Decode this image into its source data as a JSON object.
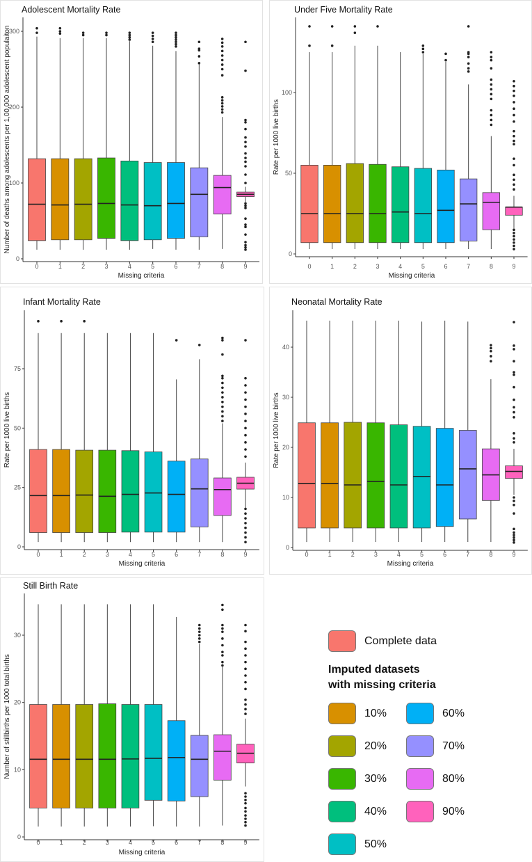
{
  "chart_data": [
    {
      "type": "boxplot",
      "title": "Adolescent Mortality Rate",
      "xlabel": "Missing criteria",
      "ylabel": "Number of deaths among adolescents per 1,00,000 adolescent populaiton",
      "categories": [
        "0",
        "1",
        "2",
        "3",
        "4",
        "5",
        "6",
        "7",
        "8",
        "9"
      ],
      "yticks": [
        0,
        100,
        200,
        300
      ],
      "ylim": [
        0,
        315
      ],
      "boxes": [
        {
          "low": 12,
          "q1": 24,
          "median": 72,
          "q3": 132,
          "high": 293,
          "outliers": [
            298,
            304
          ]
        },
        {
          "low": 12,
          "q1": 25,
          "median": 71,
          "q3": 132,
          "high": 291,
          "outliers": [
            297,
            300,
            304
          ]
        },
        {
          "low": 12,
          "q1": 25,
          "median": 72,
          "q3": 132,
          "high": 291,
          "outliers": [
            295,
            298
          ]
        },
        {
          "low": 12,
          "q1": 27,
          "median": 73,
          "q3": 133,
          "high": 291,
          "outliers": [
            295,
            298
          ]
        },
        {
          "low": 12,
          "q1": 24,
          "median": 71,
          "q3": 129,
          "high": 287,
          "outliers": [
            289,
            292,
            295,
            298
          ]
        },
        {
          "low": 13,
          "q1": 25,
          "median": 70,
          "q3": 127,
          "high": 281,
          "outliers": [
            286,
            290,
            294,
            298
          ]
        },
        {
          "low": 12,
          "q1": 27,
          "median": 73,
          "q3": 127,
          "high": 274,
          "outliers": [
            280,
            283,
            286,
            289,
            292,
            295,
            298
          ]
        },
        {
          "low": 12,
          "q1": 29,
          "median": 85,
          "q3": 120,
          "high": 258,
          "outliers": [
            258,
            267,
            275,
            277,
            286
          ]
        },
        {
          "low": 13,
          "q1": 59,
          "median": 94,
          "q3": 110,
          "high": 187,
          "outliers": [
            193,
            197,
            201,
            205,
            209,
            213,
            242,
            250,
            256,
            262,
            268,
            274,
            280,
            285,
            290
          ]
        },
        {
          "low": 75,
          "q1": 82,
          "median": 85,
          "q3": 88,
          "high": 95,
          "outliers": [
            12,
            15,
            18,
            22,
            32,
            42,
            45,
            53,
            67,
            70,
            73,
            100,
            111,
            122,
            128,
            133,
            139,
            148,
            154,
            160,
            171,
            180,
            183,
            248,
            286
          ]
        }
      ]
    },
    {
      "type": "boxplot",
      "title": "Under Five Mortality Rate",
      "xlabel": "Missing criteria",
      "ylabel": "Rate per 1000 live births",
      "categories": [
        "0",
        "1",
        "2",
        "3",
        "4",
        "5",
        "6",
        "7",
        "8",
        "9"
      ],
      "yticks": [
        0,
        50,
        100
      ],
      "ylim": [
        0,
        146
      ],
      "boxes": [
        {
          "low": 3,
          "q1": 7,
          "median": 25,
          "q3": 55,
          "high": 125,
          "outliers": [
            129,
            141
          ]
        },
        {
          "low": 3,
          "q1": 7,
          "median": 25,
          "q3": 55,
          "high": 125,
          "outliers": [
            129,
            141
          ]
        },
        {
          "low": 3,
          "q1": 7,
          "median": 25,
          "q3": 56,
          "high": 129,
          "outliers": [
            137,
            141
          ]
        },
        {
          "low": 3,
          "q1": 7,
          "median": 25,
          "q3": 55.5,
          "high": 129,
          "outliers": [
            141
          ]
        },
        {
          "low": 3,
          "q1": 7,
          "median": 26,
          "q3": 54,
          "high": 125,
          "outliers": []
        },
        {
          "low": 3,
          "q1": 7,
          "median": 25,
          "q3": 53,
          "high": 124,
          "outliers": [
            125,
            127,
            129
          ]
        },
        {
          "low": 3,
          "q1": 7,
          "median": 27,
          "q3": 52,
          "high": 119,
          "outliers": [
            120,
            124
          ]
        },
        {
          "low": 3,
          "q1": 8,
          "median": 31,
          "q3": 46.5,
          "high": 105,
          "outliers": [
            113,
            115,
            118,
            122,
            124,
            125,
            141
          ]
        },
        {
          "low": 3,
          "q1": 15,
          "median": 32,
          "q3": 38,
          "high": 73,
          "outliers": [
            80,
            83,
            86,
            89,
            96,
            99,
            102,
            105,
            108,
            115,
            120,
            122,
            125
          ]
        },
        {
          "low": 16,
          "q1": 24,
          "median": 29,
          "q3": 29,
          "high": 36,
          "outliers": [
            3,
            5,
            7,
            9,
            11,
            13,
            15,
            40,
            43,
            46,
            49,
            55,
            59,
            68,
            70,
            73,
            76,
            82,
            86,
            90,
            94,
            98,
            101,
            104,
            107
          ]
        }
      ]
    },
    {
      "type": "boxplot",
      "title": "Infant Mortality Rate",
      "xlabel": "Missing criteria",
      "ylabel": "Rate per 1000 live births",
      "categories": [
        "0",
        "1",
        "2",
        "3",
        "4",
        "5",
        "6",
        "7",
        "8",
        "9"
      ],
      "yticks": [
        0,
        25,
        50,
        75
      ],
      "ylim": [
        0,
        98
      ],
      "boxes": [
        {
          "low": 2,
          "q1": 6,
          "median": 21.6,
          "q3": 41,
          "high": 90,
          "outliers": [
            95
          ]
        },
        {
          "low": 2,
          "q1": 6,
          "median": 21.6,
          "q3": 41,
          "high": 90,
          "outliers": [
            95
          ]
        },
        {
          "low": 2,
          "q1": 6,
          "median": 21.8,
          "q3": 40.7,
          "high": 90,
          "outliers": [
            95
          ]
        },
        {
          "low": 2,
          "q1": 6,
          "median": 21.3,
          "q3": 40.7,
          "high": 90,
          "outliers": []
        },
        {
          "low": 2,
          "q1": 6.2,
          "median": 22.1,
          "q3": 40.5,
          "high": 90,
          "outliers": []
        },
        {
          "low": 2,
          "q1": 6.2,
          "median": 22.7,
          "q3": 40,
          "high": 90,
          "outliers": []
        },
        {
          "low": 2,
          "q1": 6.2,
          "median": 22.1,
          "q3": 36.1,
          "high": 70.5,
          "outliers": [
            87
          ]
        },
        {
          "low": 2,
          "q1": 8.4,
          "median": 24.4,
          "q3": 37,
          "high": 79,
          "outliers": [
            85
          ]
        },
        {
          "low": 2,
          "q1": 13.2,
          "median": 24.1,
          "q3": 29,
          "high": 52,
          "outliers": [
            53,
            55,
            57,
            59,
            61,
            63,
            65,
            67,
            69,
            71,
            72,
            81,
            87,
            88
          ]
        },
        {
          "low": 16.5,
          "q1": 24.3,
          "median": 26.8,
          "q3": 29.3,
          "high": 35.5,
          "outliers": [
            2,
            4,
            6,
            8,
            10,
            12,
            14,
            16,
            38,
            41,
            44,
            47,
            50,
            53,
            56,
            59,
            62,
            65,
            68,
            71,
            87
          ]
        }
      ]
    },
    {
      "type": "boxplot",
      "title": "Neonatal Mortality Rate",
      "xlabel": "Missing criteria",
      "ylabel": "Rate per 1000 live births",
      "categories": [
        "0",
        "1",
        "2",
        "3",
        "4",
        "5",
        "6",
        "7",
        "8",
        "9"
      ],
      "yticks": [
        0,
        10,
        20,
        30,
        40
      ],
      "ylim": [
        0,
        47
      ],
      "boxes": [
        {
          "low": 1.1,
          "q1": 3.9,
          "median": 12.8,
          "q3": 24.9,
          "high": 45.3,
          "outliers": []
        },
        {
          "low": 1.1,
          "q1": 3.9,
          "median": 12.8,
          "q3": 24.9,
          "high": 45.3,
          "outliers": []
        },
        {
          "low": 1.1,
          "q1": 3.9,
          "median": 12.5,
          "q3": 25,
          "high": 45.3,
          "outliers": []
        },
        {
          "low": 1.1,
          "q1": 3.9,
          "median": 13.2,
          "q3": 24.9,
          "high": 45.3,
          "outliers": []
        },
        {
          "low": 1.1,
          "q1": 3.9,
          "median": 12.5,
          "q3": 24.5,
          "high": 45.3,
          "outliers": []
        },
        {
          "low": 1.1,
          "q1": 3.9,
          "median": 14.2,
          "q3": 24.2,
          "high": 45.1,
          "outliers": []
        },
        {
          "low": 1.1,
          "q1": 4.2,
          "median": 12.5,
          "q3": 23.8,
          "high": 45.3,
          "outliers": []
        },
        {
          "low": 1.1,
          "q1": 5.7,
          "median": 15.7,
          "q3": 23.4,
          "high": 45.1,
          "outliers": []
        },
        {
          "low": 1.1,
          "q1": 9.4,
          "median": 14.5,
          "q3": 19.7,
          "high": 33.6,
          "outliers": [
            37.2,
            38.2,
            39.2,
            39.8,
            40.4
          ]
        },
        {
          "low": 10.5,
          "q1": 13.8,
          "median": 15.2,
          "q3": 16.3,
          "high": 19.7,
          "outliers": [
            1,
            1.5,
            2,
            2.5,
            3,
            3.7,
            6.8,
            8.5,
            9.3,
            10,
            21,
            21.8,
            22.8,
            26,
            27,
            28,
            29.5,
            32,
            34.5,
            35,
            37.2,
            39.6,
            40.3,
            45
          ]
        }
      ]
    },
    {
      "type": "boxplot",
      "title": "Still Birth Rate",
      "xlabel": "Missing criteria",
      "ylabel": "Number of stillbirths per 1000 total births",
      "categories": [
        "0",
        "1",
        "2",
        "3",
        "4",
        "5",
        "6",
        "7",
        "8",
        "9"
      ],
      "yticks": [
        0,
        10,
        20,
        30
      ],
      "ylim": [
        0,
        35.5
      ],
      "boxes": [
        {
          "low": 1.55,
          "q1": 4.3,
          "median": 11.55,
          "q3": 19.7,
          "high": 34.6,
          "outliers": []
        },
        {
          "low": 1.55,
          "q1": 4.3,
          "median": 11.55,
          "q3": 19.7,
          "high": 34.6,
          "outliers": []
        },
        {
          "low": 1.55,
          "q1": 4.3,
          "median": 11.55,
          "q3": 19.7,
          "high": 34.6,
          "outliers": []
        },
        {
          "low": 1.55,
          "q1": 4.3,
          "median": 11.55,
          "q3": 19.8,
          "high": 34.6,
          "outliers": []
        },
        {
          "low": 1.55,
          "q1": 4.3,
          "median": 11.6,
          "q3": 19.7,
          "high": 34.6,
          "outliers": []
        },
        {
          "low": 1.6,
          "q1": 5.45,
          "median": 11.7,
          "q3": 19.7,
          "high": 34.6,
          "outliers": []
        },
        {
          "low": 1.55,
          "q1": 5.35,
          "median": 11.8,
          "q3": 17.3,
          "high": 32.7,
          "outliers": []
        },
        {
          "low": 1.55,
          "q1": 6,
          "median": 11.55,
          "q3": 15.1,
          "high": 28.7,
          "outliers": [
            29,
            29.5,
            30,
            30.5,
            31,
            31.5
          ]
        },
        {
          "low": 1.7,
          "q1": 8.45,
          "median": 12.75,
          "q3": 15.2,
          "high": 25.3,
          "outliers": [
            25.5,
            26,
            27,
            27.5,
            28.5,
            29.5,
            30.5,
            31,
            31.5,
            33.8,
            34.5
          ]
        },
        {
          "low": 7.5,
          "q1": 11,
          "median": 12.45,
          "q3": 13.8,
          "high": 17.6,
          "outliers": [
            1.7,
            2.2,
            2.7,
            3.2,
            3.8,
            4.3,
            5,
            5.5,
            6,
            6.5,
            18.3,
            19,
            19.7,
            20.4,
            22,
            23,
            24,
            25,
            26,
            27,
            28,
            29,
            30.6,
            31.5
          ]
        }
      ]
    }
  ],
  "colors": [
    "#F8766D",
    "#D89000",
    "#A3A500",
    "#39B600",
    "#00BF7D",
    "#00BFC4",
    "#00B0F6",
    "#9590FF",
    "#E76BF3",
    "#FF62BC"
  ],
  "legend": {
    "complete_label": "Complete data",
    "title_line1": "Imputed datasets",
    "title_line2": "with missing criteria",
    "items": [
      "10%",
      "20%",
      "30%",
      "40%",
      "50%",
      "60%",
      "70%",
      "80%",
      "90%"
    ]
  }
}
